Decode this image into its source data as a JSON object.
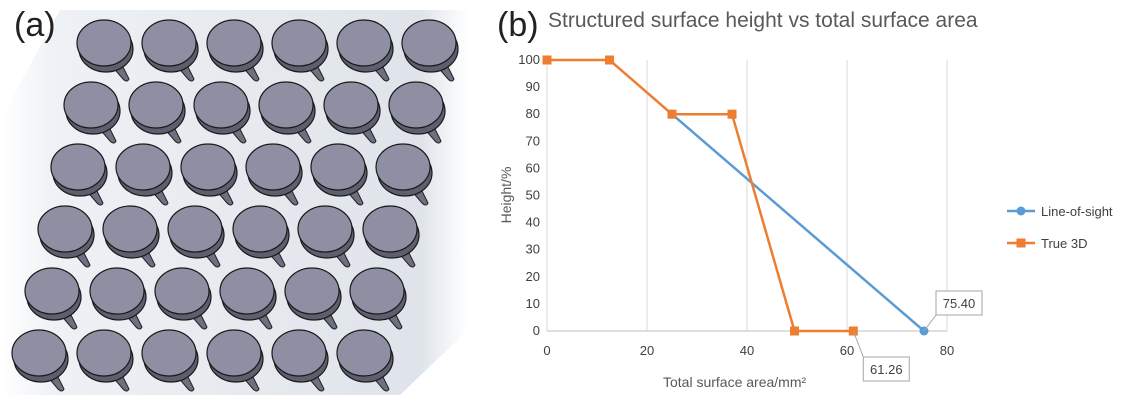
{
  "panels": {
    "a_label": "(a)",
    "b_label": "(b)"
  },
  "render": {
    "description_icon": "pillar-array-render",
    "rows": 6,
    "cols": 6,
    "cap_color": "#8e8fa3",
    "background_color": "#e4e8ee"
  },
  "chart_data": {
    "type": "line",
    "title": "Structured surface height vs total surface area",
    "xlabel": "Total surface area/mm²",
    "ylabel": "Height/%",
    "xlim": [
      0,
      80
    ],
    "ylim": [
      0,
      100
    ],
    "xticks": [
      0,
      20,
      40,
      60,
      80
    ],
    "yticks": [
      0,
      10,
      20,
      30,
      40,
      50,
      60,
      70,
      80,
      90,
      100
    ],
    "grid": "vertical",
    "legend_position": "right",
    "series": [
      {
        "name": "Line-of-sight",
        "color": "#5b9bd5",
        "marker": "circle",
        "x": [
          25,
          75.4
        ],
        "y": [
          80,
          0
        ]
      },
      {
        "name": "True 3D",
        "color": "#ed7d31",
        "marker": "square",
        "x": [
          0,
          12.5,
          25,
          37,
          49.5,
          61.26
        ],
        "y": [
          100,
          100,
          80,
          80,
          0,
          0
        ]
      }
    ],
    "annotations": [
      {
        "text": "75.40",
        "x": 75.4,
        "y": 0
      },
      {
        "text": "61.26",
        "x": 61.26,
        "y": 0
      }
    ]
  }
}
